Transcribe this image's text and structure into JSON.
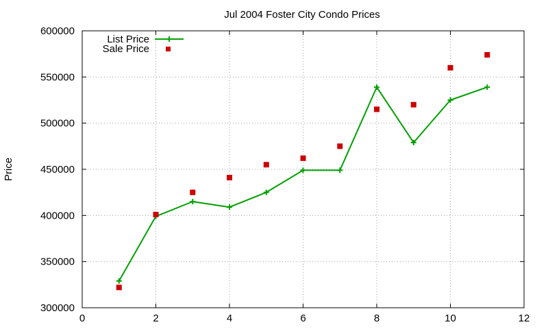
{
  "chart_data": {
    "type": "line",
    "title": "Jul 2004 Foster City Condo Prices",
    "xlabel": "",
    "ylabel": "Price",
    "xlim": [
      0,
      12
    ],
    "ylim": [
      300000,
      600000
    ],
    "x_ticks": [
      0,
      2,
      4,
      6,
      8,
      10,
      12
    ],
    "y_ticks": [
      300000,
      350000,
      400000,
      450000,
      500000,
      550000,
      600000
    ],
    "grid": true,
    "legend_position": "top-left",
    "series": [
      {
        "name": "List Price",
        "style": "line+cross",
        "color": "#00a000",
        "x": [
          1,
          2,
          3,
          4,
          5,
          6,
          7,
          8,
          9,
          10,
          11
        ],
        "y": [
          329000,
          399000,
          415000,
          409000,
          425000,
          449000,
          449000,
          539000,
          479000,
          525000,
          539000
        ]
      },
      {
        "name": "Sale Price",
        "style": "square",
        "color": "#cc0000",
        "x": [
          1,
          2,
          3,
          4,
          5,
          6,
          7,
          8,
          9,
          10,
          11
        ],
        "y": [
          322000,
          401000,
          425000,
          441000,
          455000,
          462000,
          475000,
          515000,
          520000,
          560000,
          574000
        ]
      }
    ]
  }
}
